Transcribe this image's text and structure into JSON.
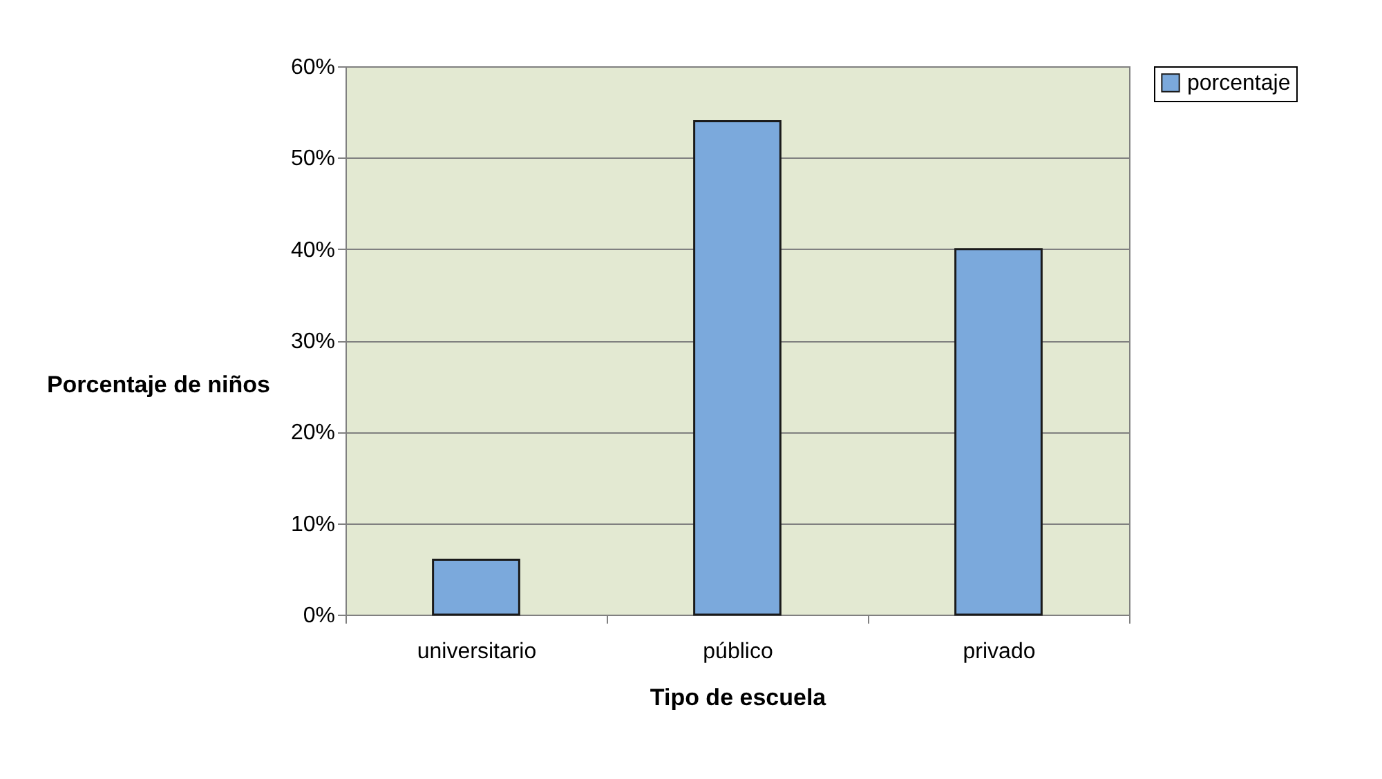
{
  "chart_data": {
    "type": "bar",
    "xlabel": "Tipo de escuela",
    "ylabel": "Porcentaje de niños",
    "categories": [
      "universitario",
      "público",
      "privado"
    ],
    "series": [
      {
        "name": "porcentaje",
        "color": "#7ba9dc",
        "values": [
          6,
          54,
          40
        ]
      }
    ],
    "ylim": [
      0,
      60
    ],
    "yticks": [
      {
        "value": 0,
        "label": "0%"
      },
      {
        "value": 10,
        "label": "10%"
      },
      {
        "value": 20,
        "label": "20%"
      },
      {
        "value": 30,
        "label": "30%"
      },
      {
        "value": 40,
        "label": "40%"
      },
      {
        "value": 50,
        "label": "50%"
      },
      {
        "value": 60,
        "label": "60%"
      }
    ],
    "grid": "y",
    "legend": "right"
  }
}
